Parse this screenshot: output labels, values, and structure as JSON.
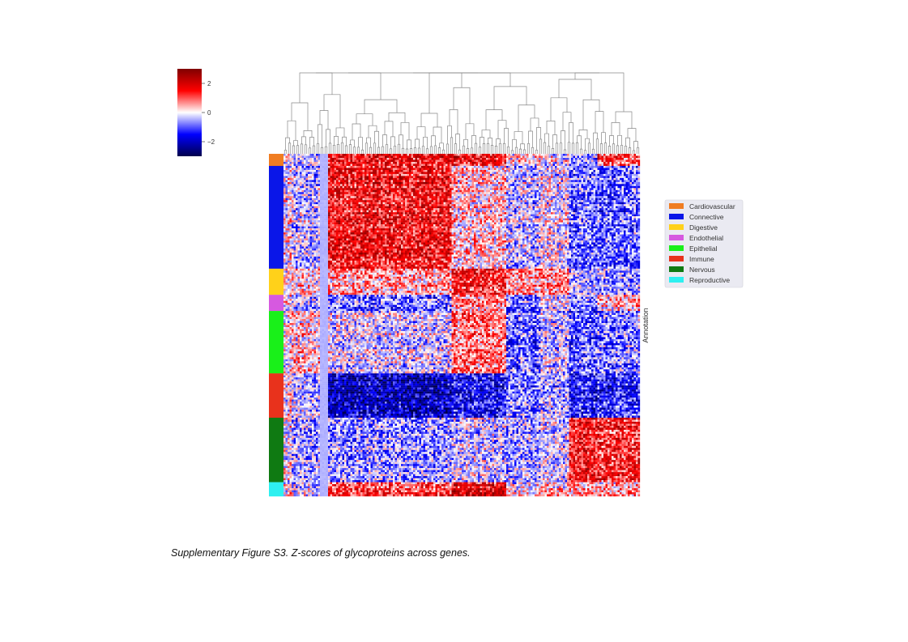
{
  "caption": "Supplementary Figure S3. Z-scores of glycoproteins across genes.",
  "chart_data": {
    "type": "heatmap",
    "title": "",
    "value_meaning": "z-score",
    "colormap": "seismic",
    "colorbar": {
      "range": [
        -3,
        3
      ],
      "ticks": [
        2,
        0,
        -2
      ],
      "tick_labels": [
        "2",
        "0",
        "−2"
      ]
    },
    "row_annotation_label": "Annotation",
    "column_dendrogram": true,
    "groups": [
      {
        "name": "Cardiovascular",
        "color": "#f07d22",
        "row_share": 0.035
      },
      {
        "name": "Connective",
        "color": "#0a16e8",
        "row_share": 0.3
      },
      {
        "name": "Digestive",
        "color": "#ffd11a",
        "row_share": 0.075
      },
      {
        "name": "Endothelial",
        "color": "#d659e0",
        "row_share": 0.045
      },
      {
        "name": "Epithelial",
        "color": "#19f019",
        "row_share": 0.18
      },
      {
        "name": "Immune",
        "color": "#e8321c",
        "row_share": 0.13
      },
      {
        "name": "Nervous",
        "color": "#0f7a12",
        "row_share": 0.19
      },
      {
        "name": "Reproductive",
        "color": "#2ef0f0",
        "row_share": 0.045
      }
    ],
    "legend_position": "right"
  }
}
